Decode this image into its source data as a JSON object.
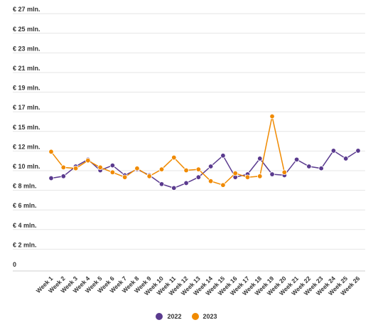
{
  "chart_data": {
    "type": "line",
    "categories": [
      "Week 1",
      "Week 2",
      "Week 3",
      "Week 4",
      "Week 5",
      "Week 6",
      "Week 7",
      "Week 8",
      "Week 9",
      "Week 10",
      "Week 11",
      "Week 12",
      "Week 13",
      "Week 14",
      "Week 15",
      "Week 16",
      "Week 17",
      "Week 18",
      "Week 19",
      "Week 20",
      "Week 21",
      "Week 22",
      "Week 23",
      "Week 24",
      "Week 25",
      "Week 26"
    ],
    "y_ticks": [
      {
        "value": 0,
        "label": "0"
      },
      {
        "value": 2,
        "label": "€ 2 mln."
      },
      {
        "value": 4,
        "label": "€ 4 mln."
      },
      {
        "value": 6,
        "label": "€ 6 mln."
      },
      {
        "value": 8,
        "label": "€ 8 mln."
      },
      {
        "value": 10,
        "label": "€ 10 mln."
      },
      {
        "value": 12,
        "label": "€ 12 mln."
      },
      {
        "value": 15,
        "label": "€ 15 mln."
      },
      {
        "value": 17,
        "label": "€ 17 mln."
      },
      {
        "value": 19,
        "label": "€ 19 mln."
      },
      {
        "value": 21,
        "label": "€ 21 mln."
      },
      {
        "value": 23,
        "label": "€ 23 mln."
      },
      {
        "value": 25,
        "label": "€ 25 mln."
      },
      {
        "value": 27,
        "label": "€ 27 mln."
      }
    ],
    "series": [
      {
        "name": "2022",
        "color": "#5a3a8e",
        "values": [
          8.8,
          9.0,
          10.0,
          10.7,
          9.6,
          10.1,
          9.1,
          9.7,
          9.1,
          8.2,
          7.8,
          8.3,
          8.9,
          10.0,
          11.1,
          8.9,
          9.2,
          10.8,
          9.2,
          9.1,
          10.7,
          10.0,
          9.8,
          11.6,
          10.8,
          11.6
        ]
      },
      {
        "name": "2023",
        "color": "#f08a00",
        "values": [
          11.5,
          9.9,
          9.8,
          10.6,
          9.9,
          9.4,
          8.9,
          9.8,
          9.0,
          9.7,
          10.9,
          9.6,
          9.7,
          8.5,
          8.1,
          9.3,
          8.9,
          9.0,
          16.1,
          9.4,
          null,
          null,
          null,
          null,
          null,
          null
        ]
      }
    ]
  }
}
